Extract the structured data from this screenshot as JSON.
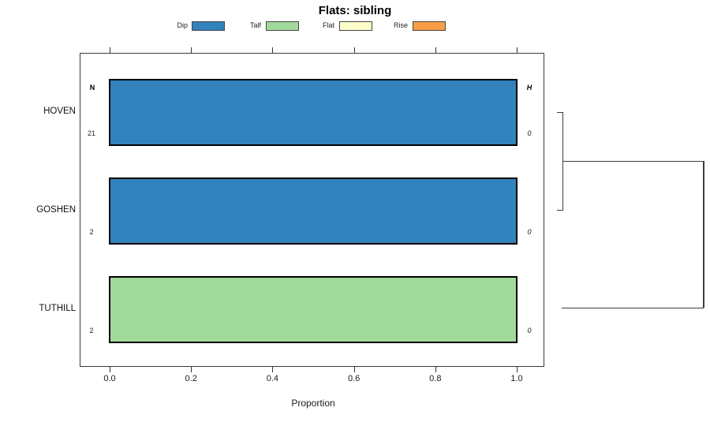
{
  "title": "Flats: sibling",
  "legend": {
    "items": [
      {
        "label": "Dip",
        "color": "#3182BD"
      },
      {
        "label": "Talf",
        "color": "#A1D99B"
      },
      {
        "label": "Flat",
        "color": "#FFFFCC"
      },
      {
        "label": "Rise",
        "color": "#F99D45"
      }
    ]
  },
  "table_headers": {
    "n": "N",
    "h": "H"
  },
  "chart_data": {
    "type": "bar",
    "orientation": "horizontal",
    "title": "Flats: sibling",
    "xlabel": "Proportion",
    "xlim": [
      0,
      1.07
    ],
    "xtick_labels": [
      "0.0",
      "0.2",
      "0.4",
      "0.6",
      "0.8",
      "1.0"
    ],
    "xtick_values": [
      0,
      0.2,
      0.4,
      0.6,
      0.8,
      1.0
    ],
    "grid": false,
    "legend_position": "top",
    "categories": [
      "HOVEN",
      "GOSHEN",
      "TUTHILL"
    ],
    "rows": [
      {
        "category": "HOVEN",
        "n": "21",
        "h": "0",
        "segments": [
          {
            "label": "Dip",
            "value": 1.0
          }
        ]
      },
      {
        "category": "GOSHEN",
        "n": "2",
        "h": "0",
        "segments": [
          {
            "label": "Dip",
            "value": 1.0
          }
        ]
      },
      {
        "category": "TUTHILL",
        "n": "2",
        "h": "0",
        "segments": [
          {
            "label": "Talf",
            "value": 1.0
          }
        ]
      }
    ],
    "dendrogram": {
      "side": "right",
      "merges": [
        {
          "members": [
            "HOVEN",
            "GOSHEN"
          ],
          "height": 0
        },
        {
          "members": [
            "HOVEN+GOSHEN",
            "TUTHILL"
          ],
          "height": 0
        }
      ]
    }
  }
}
